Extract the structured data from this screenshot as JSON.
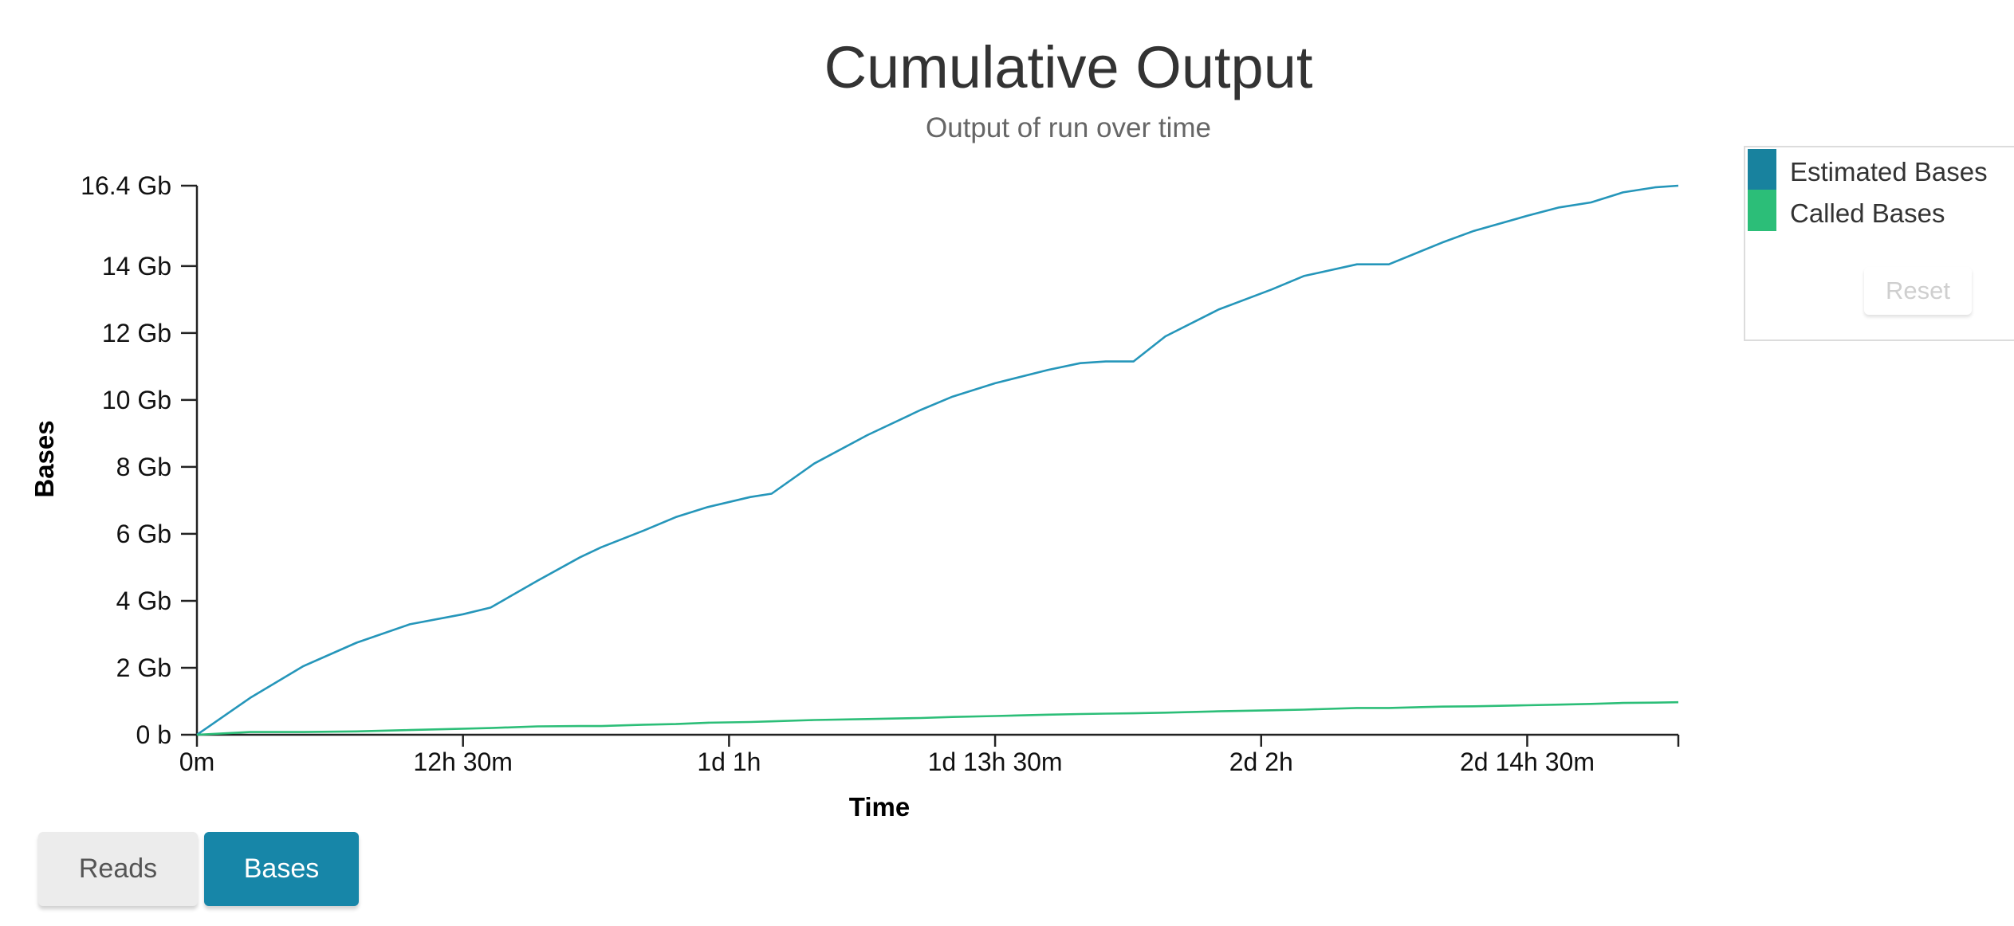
{
  "chart_data": {
    "type": "line",
    "title": "Cumulative Output",
    "subtitle": "Output of run over time",
    "xlabel": "Time",
    "ylabel": "Bases",
    "x_unit": "hours",
    "xlim": [
      0,
      69.6
    ],
    "ylim": [
      0,
      16.4
    ],
    "x_ticks": [
      {
        "value": 0,
        "label": "0m"
      },
      {
        "value": 12.5,
        "label": "12h 30m"
      },
      {
        "value": 25,
        "label": "1d 1h"
      },
      {
        "value": 37.5,
        "label": "1d 13h 30m"
      },
      {
        "value": 50,
        "label": "2d 2h"
      },
      {
        "value": 62.5,
        "label": "2d 14h 30m"
      }
    ],
    "y_ticks": [
      {
        "value": 0,
        "label": "0 b"
      },
      {
        "value": 2,
        "label": "2 Gb"
      },
      {
        "value": 4,
        "label": "4 Gb"
      },
      {
        "value": 6,
        "label": "6 Gb"
      },
      {
        "value": 8,
        "label": "8 Gb"
      },
      {
        "value": 10,
        "label": "10 Gb"
      },
      {
        "value": 12,
        "label": "12 Gb"
      },
      {
        "value": 14,
        "label": "14 Gb"
      },
      {
        "value": 16.4,
        "label": "16.4 Gb"
      }
    ],
    "series": [
      {
        "name": "Estimated Bases",
        "color": "#2596ba",
        "points": [
          [
            0,
            0
          ],
          [
            2.5,
            1.1
          ],
          [
            5,
            2.05
          ],
          [
            7.5,
            2.75
          ],
          [
            10,
            3.3
          ],
          [
            12.5,
            3.6
          ],
          [
            13.8,
            3.8
          ],
          [
            16,
            4.6
          ],
          [
            18,
            5.3
          ],
          [
            19,
            5.6
          ],
          [
            21,
            6.1
          ],
          [
            22.5,
            6.5
          ],
          [
            24,
            6.8
          ],
          [
            26,
            7.1
          ],
          [
            27,
            7.2
          ],
          [
            29,
            8.1
          ],
          [
            31.5,
            8.95
          ],
          [
            34,
            9.7
          ],
          [
            35.5,
            10.1
          ],
          [
            37.5,
            10.5
          ],
          [
            40,
            10.9
          ],
          [
            41.5,
            11.1
          ],
          [
            42.7,
            11.15
          ],
          [
            44,
            11.15
          ],
          [
            45.5,
            11.9
          ],
          [
            48,
            12.7
          ],
          [
            50.5,
            13.3
          ],
          [
            52,
            13.7
          ],
          [
            54.5,
            14.05
          ],
          [
            56,
            14.05
          ],
          [
            58.5,
            14.7
          ],
          [
            60,
            15.05
          ],
          [
            62.5,
            15.5
          ],
          [
            64,
            15.75
          ],
          [
            65.5,
            15.9
          ],
          [
            67,
            16.2
          ],
          [
            68.5,
            16.35
          ],
          [
            69.6,
            16.4
          ]
        ]
      },
      {
        "name": "Called Bases",
        "color": "#2cbe78",
        "points": [
          [
            0,
            0
          ],
          [
            2.5,
            0.08
          ],
          [
            5,
            0.08
          ],
          [
            7.5,
            0.1
          ],
          [
            10,
            0.14
          ],
          [
            12.5,
            0.18
          ],
          [
            13.8,
            0.2
          ],
          [
            16,
            0.25
          ],
          [
            18,
            0.26
          ],
          [
            19,
            0.26
          ],
          [
            21,
            0.3
          ],
          [
            22.5,
            0.32
          ],
          [
            24,
            0.36
          ],
          [
            26,
            0.38
          ],
          [
            27,
            0.4
          ],
          [
            29,
            0.44
          ],
          [
            31.5,
            0.47
          ],
          [
            34,
            0.5
          ],
          [
            35.5,
            0.53
          ],
          [
            37.5,
            0.56
          ],
          [
            40,
            0.6
          ],
          [
            41.5,
            0.62
          ],
          [
            42.7,
            0.63
          ],
          [
            44,
            0.64
          ],
          [
            45.5,
            0.66
          ],
          [
            48,
            0.7
          ],
          [
            50.5,
            0.73
          ],
          [
            52,
            0.75
          ],
          [
            54.5,
            0.8
          ],
          [
            56,
            0.8
          ],
          [
            58.5,
            0.84
          ],
          [
            60,
            0.85
          ],
          [
            62.5,
            0.88
          ],
          [
            64,
            0.9
          ],
          [
            65.5,
            0.92
          ],
          [
            67,
            0.95
          ],
          [
            68.5,
            0.96
          ],
          [
            69.6,
            0.97
          ]
        ]
      }
    ],
    "legend_position": "top-right",
    "grid": false
  },
  "legend": {
    "items": [
      {
        "label": "Estimated Bases",
        "color": "#18829e"
      },
      {
        "label": "Called Bases",
        "color": "#2cbe78"
      }
    ],
    "reset_label": "Reset"
  },
  "toggle": {
    "reads_label": "Reads",
    "bases_label": "Bases",
    "active": "Bases",
    "active_color": "#1786a8"
  }
}
